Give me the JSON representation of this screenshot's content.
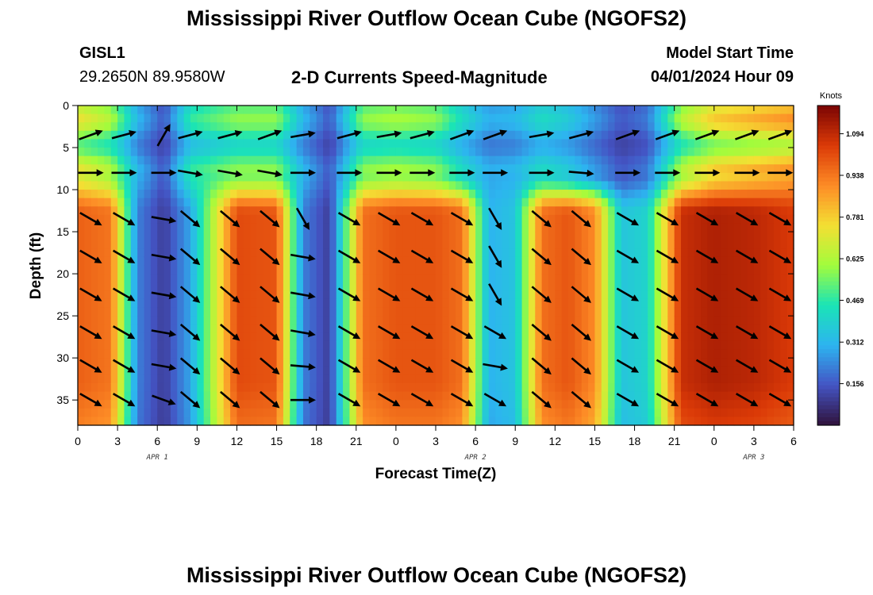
{
  "page": {
    "title": "Mississippi River Outflow Ocean Cube (NGOFS2)",
    "title_repeat": "Mississippi River Outflow Ocean Cube (NGOFS2)",
    "station_id": "GISL1",
    "station_coords": "29.2650N  89.9580W",
    "subtitle": "2-D Currents Speed-Magnitude",
    "model_start_label": "Model Start Time",
    "model_start_value": "04/01/2024 Hour 09"
  },
  "chart_data": {
    "type": "heatmap",
    "title": "2-D Currents Speed-Magnitude",
    "xlabel": "Forecast Time(Z)",
    "ylabel": "Depth (ft)",
    "y_reversed": true,
    "ylim": [
      0,
      38
    ],
    "y_ticks": [
      "0",
      "5",
      "10",
      "15",
      "20",
      "25",
      "30",
      "35"
    ],
    "x_hours_range": [
      0,
      54
    ],
    "x_ticks": [
      "0",
      "3",
      "6",
      "9",
      "12",
      "15",
      "18",
      "21",
      "0",
      "3",
      "6",
      "9",
      "12",
      "15",
      "18",
      "21",
      "0",
      "3",
      "6"
    ],
    "date_labels": [
      {
        "text": "APR 1",
        "hour": 6
      },
      {
        "text": "APR 2",
        "hour": 30
      },
      {
        "text": "APR 3",
        "hour": 51
      }
    ],
    "colorbar": {
      "unit": "Knots",
      "min": 0,
      "max": 1.2,
      "ticks": [
        "1.094",
        "0.938",
        "0.781",
        "0.625",
        "0.469",
        "0.312",
        "0.156"
      ],
      "tick_values": [
        1.094,
        0.938,
        0.781,
        0.625,
        0.469,
        0.312,
        0.156
      ],
      "colormap": [
        "#30123b",
        "#4454c4",
        "#2db4f0",
        "#1ae4b6",
        "#a2fc3c",
        "#f4df33",
        "#fd8b26",
        "#db3a07",
        "#7a0403"
      ]
    },
    "speed_profile_hours": [
      0,
      2.5,
      4.5,
      6.5,
      8.5,
      12,
      15,
      17,
      19,
      21.5,
      24,
      27,
      29,
      31,
      33,
      35,
      37,
      39,
      41,
      43,
      45.5,
      48,
      51,
      54
    ],
    "deep_speed_knots": [
      0.98,
      0.94,
      0.22,
      0.1,
      0.28,
      1.02,
      1.0,
      0.22,
      0.1,
      0.95,
      1.0,
      1.0,
      0.95,
      0.3,
      0.35,
      0.95,
      1.0,
      0.9,
      0.35,
      0.4,
      1.08,
      1.12,
      1.1,
      1.05
    ],
    "surface_speed_knots": [
      0.7,
      0.6,
      0.3,
      0.15,
      0.45,
      0.55,
      0.55,
      0.3,
      0.15,
      0.55,
      0.58,
      0.55,
      0.4,
      0.28,
      0.3,
      0.4,
      0.35,
      0.25,
      0.15,
      0.2,
      0.6,
      0.75,
      0.8,
      0.85
    ],
    "arrow_hours": [
      1,
      3.5,
      6.5,
      8.5,
      11.5,
      14.5,
      17,
      20.5,
      23.5,
      26,
      29,
      31.5,
      35,
      38,
      41.5,
      44.5,
      47.5,
      50.5,
      53
    ],
    "arrow_depths_ft": [
      3.5,
      8.0,
      13.5,
      18.0,
      22.5,
      27.0,
      31.0,
      35.0
    ],
    "arrow_directions_deg": [
      [
        20,
        15,
        60,
        15,
        15,
        20,
        10,
        15,
        10,
        15,
        20,
        20,
        10,
        15,
        20,
        20,
        20,
        20,
        20
      ],
      [
        0,
        0,
        0,
        -10,
        -10,
        -10,
        0,
        0,
        0,
        0,
        0,
        0,
        0,
        -5,
        0,
        0,
        0,
        0,
        0
      ],
      [
        -30,
        -30,
        -10,
        -40,
        -40,
        -40,
        -60,
        -30,
        -30,
        -30,
        -30,
        -60,
        -40,
        -40,
        -30,
        -30,
        -30,
        -30,
        -30
      ],
      [
        -30,
        -30,
        -10,
        -40,
        -40,
        -40,
        -10,
        -30,
        -30,
        -30,
        -30,
        -60,
        -40,
        -40,
        -30,
        -30,
        -30,
        -30,
        -30
      ],
      [
        -30,
        -30,
        -10,
        -40,
        -40,
        -40,
        -10,
        -30,
        -30,
        -30,
        -30,
        -60,
        -40,
        -40,
        -30,
        -30,
        -30,
        -30,
        -30
      ],
      [
        -30,
        -30,
        -10,
        -40,
        -40,
        -40,
        -10,
        -30,
        -30,
        -30,
        -30,
        -30,
        -40,
        -40,
        -30,
        -30,
        -30,
        -30,
        -30
      ],
      [
        -30,
        -30,
        -10,
        -40,
        -40,
        -40,
        -5,
        -30,
        -30,
        -30,
        -30,
        -10,
        -40,
        -40,
        -30,
        -30,
        -30,
        -30,
        -30
      ],
      [
        -30,
        -30,
        -20,
        -40,
        -40,
        -40,
        0,
        -30,
        -30,
        -30,
        -30,
        -30,
        -40,
        -40,
        -30,
        -30,
        -30,
        -30,
        -30
      ]
    ]
  }
}
